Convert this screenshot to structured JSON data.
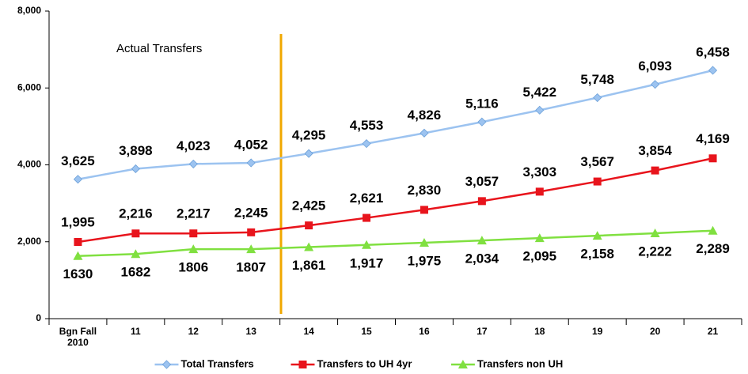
{
  "chart_data": {
    "type": "line",
    "annotation": "Actual Transfers",
    "categories": [
      "Bgn Fall 2010",
      "11",
      "12",
      "13",
      "14",
      "15",
      "16",
      "17",
      "18",
      "19",
      "20",
      "21"
    ],
    "series": [
      {
        "name": "Total Transfers",
        "color": "#9cc3f0",
        "marker": "diamond",
        "values": [
          3625,
          3898,
          4023,
          4052,
          4295,
          4553,
          4826,
          5116,
          5422,
          5748,
          6093,
          6458
        ],
        "value_labels": [
          "3,625",
          "3,898",
          "4,023",
          "4,052",
          "4,295",
          "4,553",
          "4,826",
          "5,116",
          "5,422",
          "5,748",
          "6,093",
          "6,458"
        ]
      },
      {
        "name": "Transfers to UH 4yr",
        "color": "#e8141c",
        "marker": "square",
        "values": [
          1995,
          2216,
          2217,
          2245,
          2425,
          2621,
          2830,
          3057,
          3303,
          3567,
          3854,
          4169
        ],
        "value_labels": [
          "1,995",
          "2,216",
          "2,217",
          "2,245",
          "2,425",
          "2,621",
          "2,830",
          "3,057",
          "3,303",
          "3,567",
          "3,854",
          "4,169"
        ]
      },
      {
        "name": "Transfers non UH",
        "color": "#80e040",
        "marker": "triangle",
        "values": [
          1630,
          1682,
          1806,
          1807,
          1861,
          1917,
          1975,
          2034,
          2095,
          2158,
          2222,
          2289
        ],
        "value_labels": [
          "1630",
          "1682",
          "1806",
          "1807",
          "1,861",
          "1,917",
          "1,975",
          "2,034",
          "2,095",
          "2,158",
          "2,222",
          "2,289"
        ]
      }
    ],
    "ylim": [
      0,
      8000
    ],
    "yticks": [
      0,
      {
        "value": 2000,
        "label": "2,000"
      },
      {
        "value": 4000,
        "label": "4,000"
      },
      {
        "value": 6000,
        "label": "6,000"
      },
      {
        "value": 8000,
        "label": "8,000"
      }
    ],
    "grid": false,
    "legend": "bottom"
  }
}
